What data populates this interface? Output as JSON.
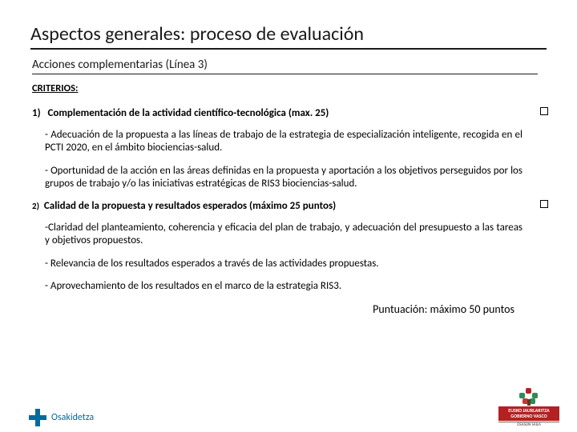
{
  "title": "Aspectos generales: proceso de evaluación",
  "subtitle": "Acciones complementarias (Línea 3)",
  "criterios_label": "CRITERIOS:",
  "crit1": {
    "num": "1)",
    "heading": "Complementación de la actividad científico-tecnológica (max. 25)",
    "bullets": [
      "- Adecuación de la propuesta a las líneas de trabajo de la estrategia de especialización inteligente, recogida en el PCTI 2020, en el ámbito biociencias-salud.",
      "- Oportunidad de la acción en las áreas definidas en la propuesta y aportación a los objetivos perseguidos por los grupos de trabajo y/o las iniciativas estratégicas de RIS3 biociencias-salud."
    ]
  },
  "crit2": {
    "num": "2)",
    "heading": "Calidad de la propuesta y resultados esperados (máximo 25 puntos)",
    "bullets": [
      "-Claridad del planteamiento, coherencia y eficacia del plan de trabajo, y adecuación del presupuesto a las tareas y objetivos propuestos.",
      "- Relevancia de los resultados esperados a través de las actividades propuestas.",
      "- Aprovechamiento de los resultados en el marco de la estrategia RIS3."
    ]
  },
  "score": "Puntuación: máximo 50 puntos",
  "footer": {
    "osakidetza": "Osakidetza",
    "gv_line1": "EUSKO JAURLARITZA",
    "gv_line2": "GOBIERNO VASCO",
    "gv_sub": "OSASUN SAILA"
  },
  "colors": {
    "text": "#000000",
    "rule": "#1a1a1a",
    "osak": "#006b9e",
    "gv_red": "#b22222"
  }
}
